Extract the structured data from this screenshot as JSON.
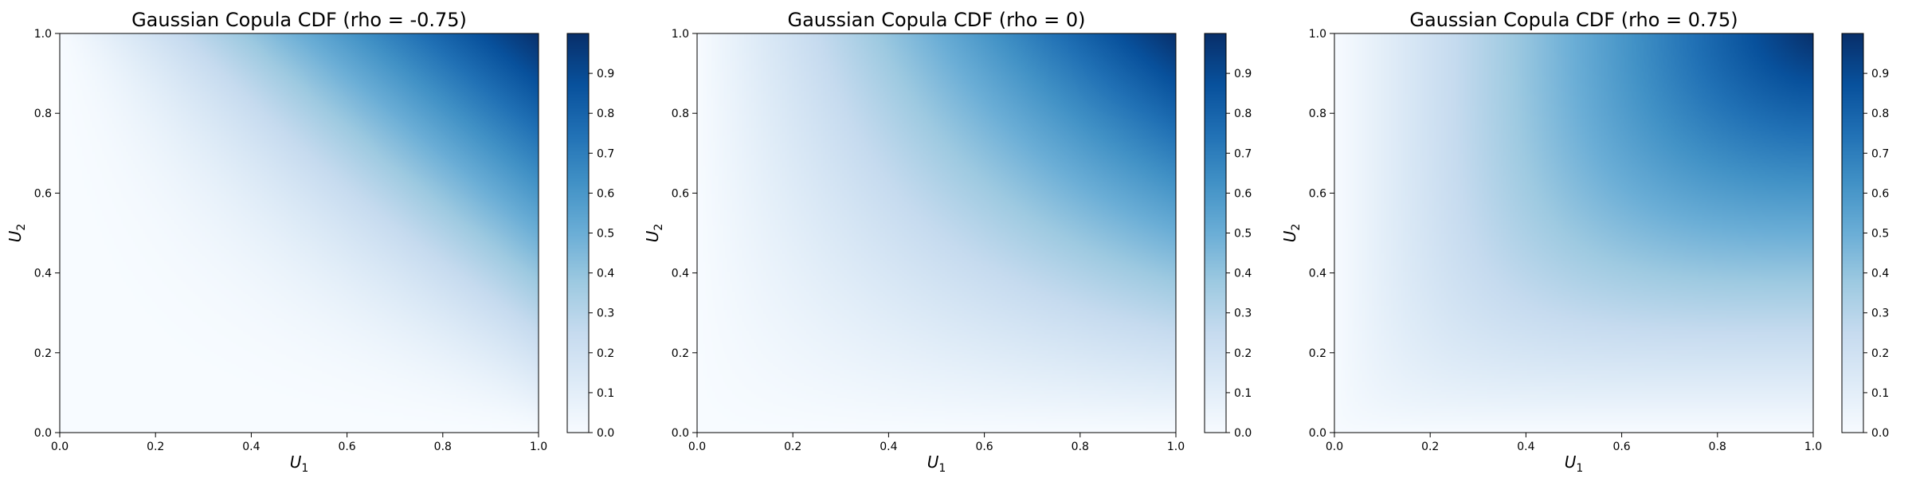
{
  "chart_data": [
    {
      "type": "heatmap",
      "title": "Gaussian Copula CDF (rho = -0.75)",
      "rho": -0.75,
      "xlabel": "U",
      "xlabel_sub": "1",
      "ylabel": "U",
      "ylabel_sub": "2",
      "xlim": [
        0,
        1
      ],
      "ylim": [
        0,
        1
      ],
      "xticks": [
        "0.0",
        "0.2",
        "0.4",
        "0.6",
        "0.8",
        "1.0"
      ],
      "yticks": [
        "0.0",
        "0.2",
        "0.4",
        "0.6",
        "0.8",
        "1.0"
      ],
      "colorbar_range": [
        0,
        1
      ],
      "colorbar_ticks": [
        "0.0",
        "0.1",
        "0.2",
        "0.3",
        "0.4",
        "0.5",
        "0.6",
        "0.7",
        "0.8",
        "0.9"
      ],
      "colormap": "Blues"
    },
    {
      "type": "heatmap",
      "title": "Gaussian Copula CDF (rho = 0)",
      "rho": 0,
      "xlabel": "U",
      "xlabel_sub": "1",
      "ylabel": "U",
      "ylabel_sub": "2",
      "xlim": [
        0,
        1
      ],
      "ylim": [
        0,
        1
      ],
      "xticks": [
        "0.0",
        "0.2",
        "0.4",
        "0.6",
        "0.8",
        "1.0"
      ],
      "yticks": [
        "0.0",
        "0.2",
        "0.4",
        "0.6",
        "0.8",
        "1.0"
      ],
      "colorbar_range": [
        0,
        1
      ],
      "colorbar_ticks": [
        "0.0",
        "0.1",
        "0.2",
        "0.3",
        "0.4",
        "0.5",
        "0.6",
        "0.7",
        "0.8",
        "0.9"
      ],
      "colormap": "Blues"
    },
    {
      "type": "heatmap",
      "title": "Gaussian Copula CDF (rho = 0.75)",
      "rho": 0.75,
      "xlabel": "U",
      "xlabel_sub": "1",
      "ylabel": "U",
      "ylabel_sub": "2",
      "xlim": [
        0,
        1
      ],
      "ylim": [
        0,
        1
      ],
      "xticks": [
        "0.0",
        "0.2",
        "0.4",
        "0.6",
        "0.8",
        "1.0"
      ],
      "yticks": [
        "0.0",
        "0.2",
        "0.4",
        "0.6",
        "0.8",
        "1.0"
      ],
      "colorbar_range": [
        0,
        1
      ],
      "colorbar_ticks": [
        "0.0",
        "0.1",
        "0.2",
        "0.3",
        "0.4",
        "0.5",
        "0.6",
        "0.7",
        "0.8",
        "0.9"
      ],
      "colormap": "Blues"
    }
  ],
  "colors": {
    "blues_stops": [
      "#f7fbff",
      "#deebf7",
      "#c6dbef",
      "#9ecae1",
      "#6baed6",
      "#4292c6",
      "#2171b5",
      "#08519c",
      "#08306b"
    ]
  }
}
